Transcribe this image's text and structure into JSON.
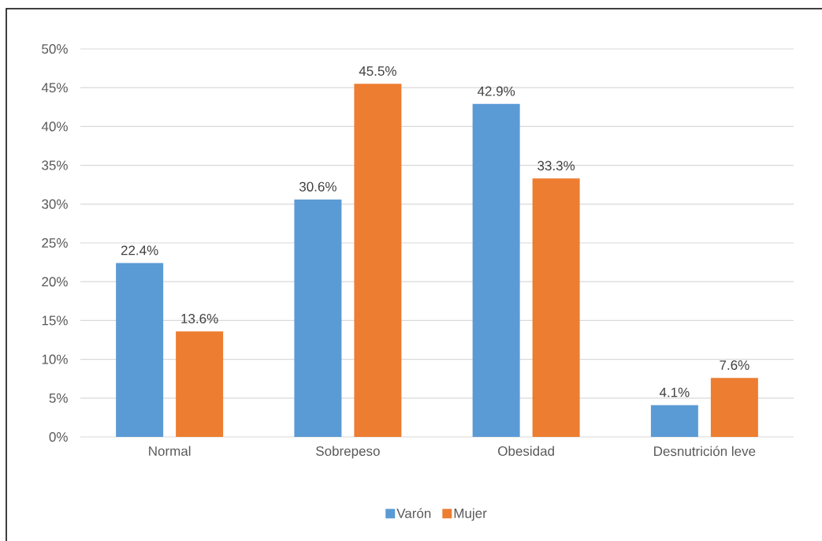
{
  "chart_data": {
    "type": "bar",
    "categories": [
      "Normal",
      "Sobrepeso",
      "Obesidad",
      "Desnutrición leve"
    ],
    "series": [
      {
        "name": "Varón",
        "color": "#5b9bd5",
        "values": [
          22.4,
          30.6,
          42.9,
          4.1
        ],
        "value_labels": [
          "22.4%",
          "30.6%",
          "42.9%",
          "4.1%"
        ]
      },
      {
        "name": "Mujer",
        "color": "#ed7d31",
        "values": [
          13.6,
          45.5,
          33.3,
          7.6
        ],
        "value_labels": [
          "13.6%",
          "45.5%",
          "33.3%",
          "7.6%"
        ]
      }
    ],
    "ylim": [
      0,
      50
    ],
    "yticks": [
      {
        "value": 0,
        "label": "0%"
      },
      {
        "value": 5,
        "label": "5%"
      },
      {
        "value": 10,
        "label": "10%"
      },
      {
        "value": 15,
        "label": "15%"
      },
      {
        "value": 20,
        "label": "20%"
      },
      {
        "value": 25,
        "label": "25%"
      },
      {
        "value": 30,
        "label": "30%"
      },
      {
        "value": 35,
        "label": "35%"
      },
      {
        "value": 40,
        "label": "40%"
      },
      {
        "value": 45,
        "label": "45%"
      },
      {
        "value": 50,
        "label": "50%"
      }
    ],
    "grid": "y",
    "legend": "bottom"
  }
}
